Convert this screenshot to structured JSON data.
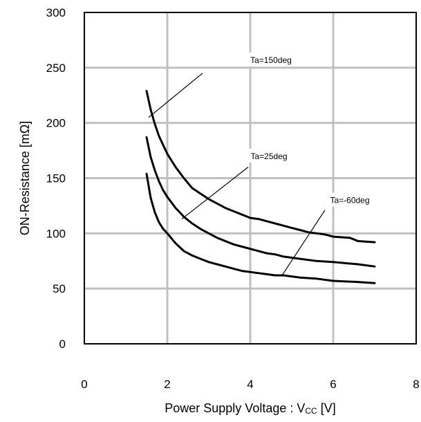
{
  "chart_data": {
    "type": "line",
    "xlabel_prefix": "Power Supply Voltage : V",
    "xlabel_sub": "CC",
    "xlabel_suffix": " [V]",
    "ylabel": "ON-Resistance [mΩ]",
    "xlim": [
      0,
      8
    ],
    "ylim": [
      0,
      300
    ],
    "xticks": [
      "0",
      "2",
      "4",
      "6",
      "8"
    ],
    "yticks": [
      "0",
      "50",
      "100",
      "150",
      "200",
      "250",
      "300"
    ],
    "grid": true,
    "series": [
      {
        "name": "Ta=150deg",
        "points": [
          [
            1.5,
            229
          ],
          [
            1.6,
            212
          ],
          [
            1.7,
            199
          ],
          [
            1.8,
            188
          ],
          [
            1.9,
            180
          ],
          [
            2.0,
            172
          ],
          [
            2.2,
            160
          ],
          [
            2.4,
            150
          ],
          [
            2.6,
            141
          ],
          [
            2.8,
            136
          ],
          [
            3.0,
            131
          ],
          [
            3.2,
            127
          ],
          [
            3.4,
            123
          ],
          [
            3.6,
            120
          ],
          [
            3.8,
            117
          ],
          [
            4.0,
            114
          ],
          [
            4.2,
            113
          ],
          [
            4.4,
            111
          ],
          [
            4.6,
            109
          ],
          [
            4.8,
            107
          ],
          [
            5.0,
            105
          ],
          [
            5.2,
            103
          ],
          [
            5.4,
            101
          ],
          [
            5.6,
            100
          ],
          [
            5.8,
            99
          ],
          [
            6.0,
            97
          ],
          [
            6.4,
            96
          ],
          [
            6.6,
            93
          ],
          [
            7.0,
            92
          ]
        ]
      },
      {
        "name": "Ta=25deg",
        "points": [
          [
            1.5,
            187
          ],
          [
            1.6,
            169
          ],
          [
            1.7,
            157
          ],
          [
            1.8,
            147
          ],
          [
            1.9,
            139
          ],
          [
            2.0,
            133
          ],
          [
            2.2,
            123
          ],
          [
            2.4,
            115
          ],
          [
            2.6,
            109
          ],
          [
            2.8,
            104
          ],
          [
            3.0,
            100
          ],
          [
            3.2,
            96
          ],
          [
            3.4,
            93
          ],
          [
            3.6,
            90
          ],
          [
            3.8,
            88
          ],
          [
            4.0,
            86
          ],
          [
            4.2,
            84
          ],
          [
            4.4,
            82
          ],
          [
            4.6,
            81
          ],
          [
            4.8,
            79
          ],
          [
            5.0,
            78
          ],
          [
            5.2,
            77
          ],
          [
            5.6,
            75
          ],
          [
            6.0,
            74
          ],
          [
            6.6,
            72
          ],
          [
            7.0,
            70
          ]
        ]
      },
      {
        "name": "Ta=-60deg",
        "points": [
          [
            1.5,
            154
          ],
          [
            1.6,
            132
          ],
          [
            1.7,
            119
          ],
          [
            1.8,
            110
          ],
          [
            1.9,
            104
          ],
          [
            2.0,
            100
          ],
          [
            2.2,
            91
          ],
          [
            2.4,
            84
          ],
          [
            2.6,
            80
          ],
          [
            2.8,
            77
          ],
          [
            3.0,
            74
          ],
          [
            3.2,
            72
          ],
          [
            3.4,
            70
          ],
          [
            3.6,
            68
          ],
          [
            3.8,
            66
          ],
          [
            4.0,
            65
          ],
          [
            4.2,
            64
          ],
          [
            4.4,
            63
          ],
          [
            4.6,
            62
          ],
          [
            4.8,
            62
          ],
          [
            5.0,
            61
          ],
          [
            5.2,
            60
          ],
          [
            5.6,
            59
          ],
          [
            6.0,
            57
          ],
          [
            6.6,
            56
          ],
          [
            7.0,
            55
          ]
        ]
      }
    ],
    "annotations": [
      {
        "text": "Ta=150deg",
        "label_at": [
          4.5,
          255
        ],
        "arrow_from": [
          2.85,
          245
        ],
        "arrow_to": [
          1.55,
          205
        ]
      },
      {
        "text": "Ta=25deg",
        "label_at": [
          4.45,
          168
        ],
        "arrow_from": [
          3.95,
          160
        ],
        "arrow_to": [
          2.35,
          113
        ]
      },
      {
        "text": "Ta=-60deg",
        "label_at": [
          6.4,
          128
        ],
        "arrow_from": [
          5.8,
          121
        ],
        "arrow_to": [
          4.75,
          61
        ]
      }
    ]
  }
}
